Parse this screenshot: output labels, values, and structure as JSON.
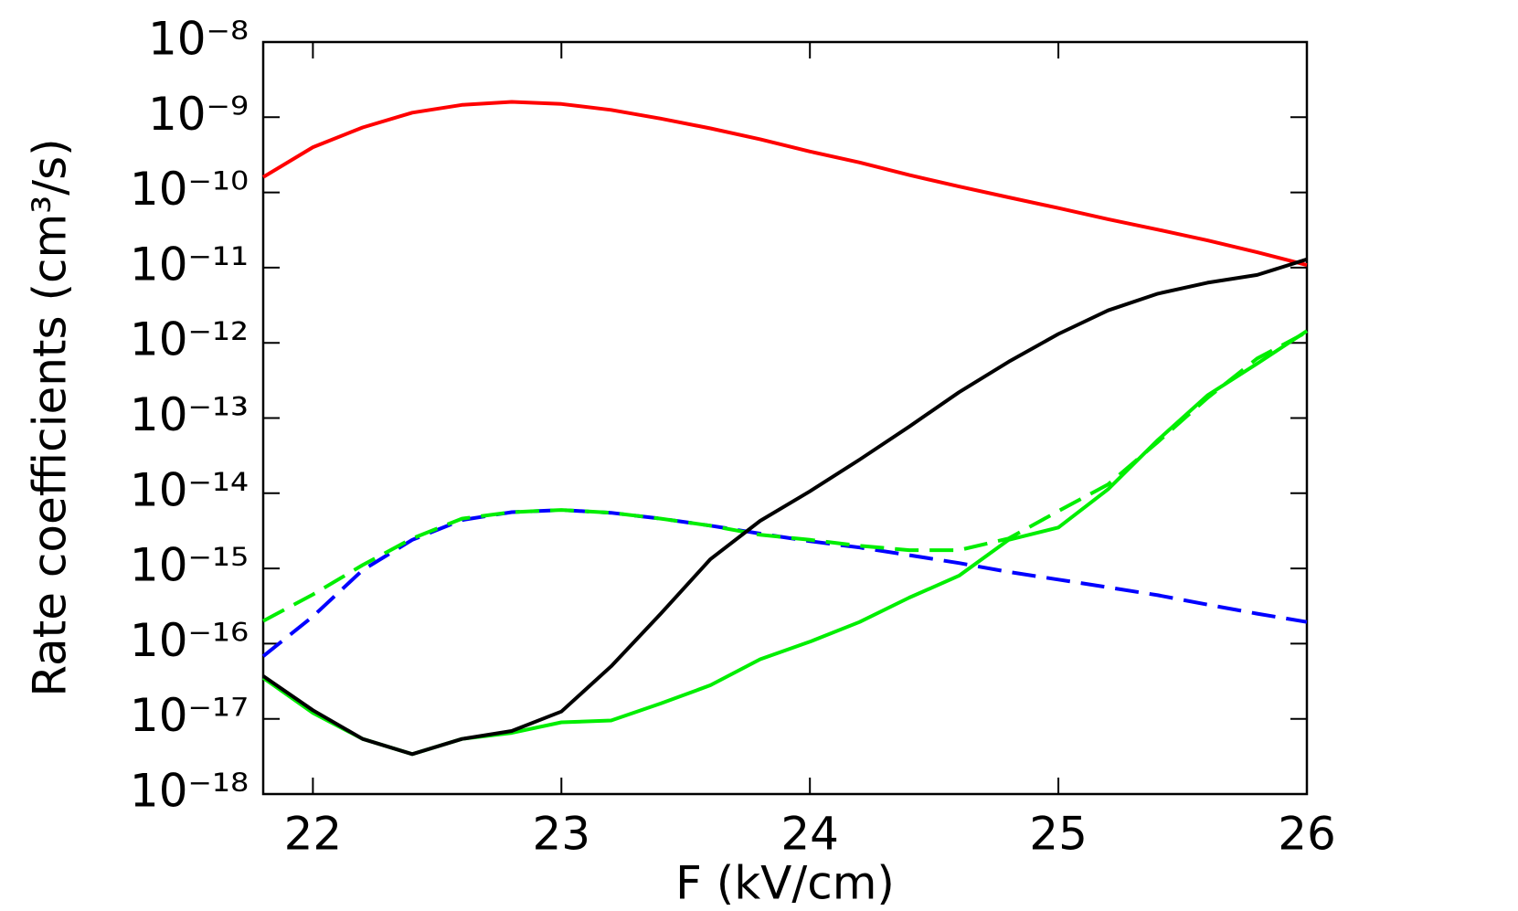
{
  "chart_data": {
    "type": "line",
    "x_label": "F (kV/cm)",
    "y_label": "Rate coefficients (cm³/s)",
    "y_log": true,
    "x": [
      21.8,
      22.0,
      22.2,
      22.4,
      22.6,
      22.8,
      23.0,
      23.2,
      23.4,
      23.6,
      23.8,
      24.0,
      24.2,
      24.4,
      24.6,
      24.8,
      25.0,
      25.2,
      25.4,
      25.6,
      25.8,
      26.0
    ],
    "series": [
      {
        "color": "#ff0000",
        "line_style": "solid",
        "values": [
          1.6e-10,
          4e-10,
          7.3e-10,
          1.15e-09,
          1.46e-09,
          1.6e-09,
          1.5e-09,
          1.25e-09,
          9.6e-10,
          7.1e-10,
          5.1e-10,
          3.5e-10,
          2.5e-10,
          1.7e-10,
          1.2e-10,
          8.6e-11,
          6.2e-11,
          4.4e-11,
          3.2e-11,
          2.3e-11,
          1.6e-11,
          1.08e-11
        ]
      },
      {
        "color": "#0000ff",
        "line_style": "dashed",
        "values": [
          6.8e-17,
          2.3e-16,
          9.5e-16,
          2.4e-15,
          4.4e-15,
          5.6e-15,
          6e-15,
          5.5e-15,
          4.6e-15,
          3.7e-15,
          2.9e-15,
          2.3e-15,
          1.9e-15,
          1.5e-15,
          1.18e-15,
          9e-16,
          7.1e-16,
          5.6e-16,
          4.4e-16,
          3.3e-16,
          2.5e-16,
          1.94e-16
        ]
      },
      {
        "color": "#00ee00",
        "line_style": "dashed",
        "values": [
          2e-16,
          4.5e-16,
          1.11e-15,
          2.5e-15,
          4.6e-15,
          5.6e-15,
          6e-15,
          5.5e-15,
          4.6e-15,
          3.7e-15,
          2.8e-15,
          2.4e-15,
          2e-15,
          1.75e-15,
          1.75e-15,
          2.5e-15,
          5.8e-15,
          1.31e-14,
          4.8e-14,
          1.85e-13,
          6.2e-13,
          1.39e-12
        ]
      },
      {
        "color": "#00ee00",
        "line_style": "solid",
        "values": [
          3.5e-17,
          1.2e-17,
          5.4e-18,
          3.4e-18,
          5.4e-18,
          6.5e-18,
          9e-18,
          9.5e-18,
          1.6e-17,
          2.8e-17,
          6.2e-17,
          1.06e-16,
          1.94e-16,
          4.1e-16,
          8e-16,
          2.4e-15,
          3.5e-15,
          1.13e-14,
          5.1e-14,
          2e-13,
          5.3e-13,
          1.44e-12
        ]
      },
      {
        "color": "#000000",
        "line_style": "solid",
        "values": [
          3.7e-17,
          1.3e-17,
          5.4e-18,
          3.4e-18,
          5.4e-18,
          6.9e-18,
          1.25e-17,
          5e-17,
          2.5e-16,
          1.33e-15,
          4.3e-15,
          1.06e-14,
          2.8e-14,
          7.7e-14,
          2.2e-13,
          5.6e-13,
          1.31e-12,
          2.7e-12,
          4.5e-12,
          6.3e-12,
          8e-12,
          1.29e-11
        ]
      }
    ],
    "xlim": [
      21.8,
      26
    ],
    "xticks": [
      22,
      23,
      24,
      25,
      26
    ],
    "ylim": [
      1e-18,
      1e-08
    ],
    "yticks": [
      {
        "value": 1e-18,
        "label": "10⁻¹⁸"
      },
      {
        "value": 1e-17,
        "label": "10⁻¹⁷"
      },
      {
        "value": 1e-16,
        "label": "10⁻¹⁶"
      },
      {
        "value": 1e-15,
        "label": "10⁻¹⁵"
      },
      {
        "value": 1e-14,
        "label": "10⁻¹⁴"
      },
      {
        "value": 1e-13,
        "label": "10⁻¹³"
      },
      {
        "value": 1e-12,
        "label": "10⁻¹²"
      },
      {
        "value": 1e-11,
        "label": "10⁻¹¹"
      },
      {
        "value": 1e-10,
        "label": "10⁻¹⁰"
      },
      {
        "value": 1e-09,
        "label": "10⁻⁹"
      },
      {
        "value": 1e-08,
        "label": "10⁻⁸"
      }
    ],
    "grid": false
  }
}
